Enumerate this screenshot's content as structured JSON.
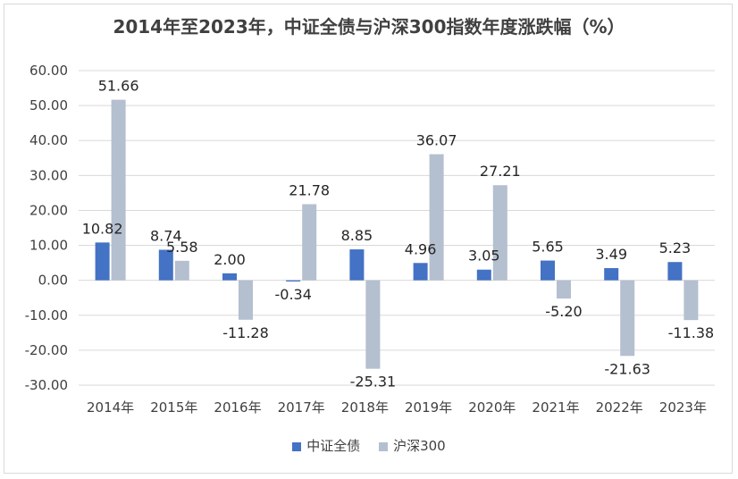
{
  "chart_data": {
    "type": "bar",
    "title": "2014年至2023年，中证全债与沪深300指数年度涨跌幅（%）",
    "categories": [
      "2014年",
      "2015年",
      "2016年",
      "2017年",
      "2018年",
      "2019年",
      "2020年",
      "2021年",
      "2022年",
      "2023年"
    ],
    "series": [
      {
        "name": "中证全债",
        "color": "#4472c4",
        "values": [
          10.82,
          8.74,
          2.0,
          -0.34,
          8.85,
          4.96,
          3.05,
          5.65,
          3.49,
          5.23
        ]
      },
      {
        "name": "沪深300",
        "color": "#b4bfcf",
        "values": [
          51.66,
          5.58,
          -11.28,
          21.78,
          -25.31,
          36.07,
          27.21,
          -5.2,
          -21.63,
          -11.38
        ]
      }
    ],
    "ylim": [
      -30,
      60
    ],
    "yticks": [
      "60.00",
      "50.00",
      "40.00",
      "30.00",
      "20.00",
      "10.00",
      "0.00",
      "-10.00",
      "-20.00",
      "-30.00"
    ],
    "grid": true,
    "legend": "bottom"
  }
}
